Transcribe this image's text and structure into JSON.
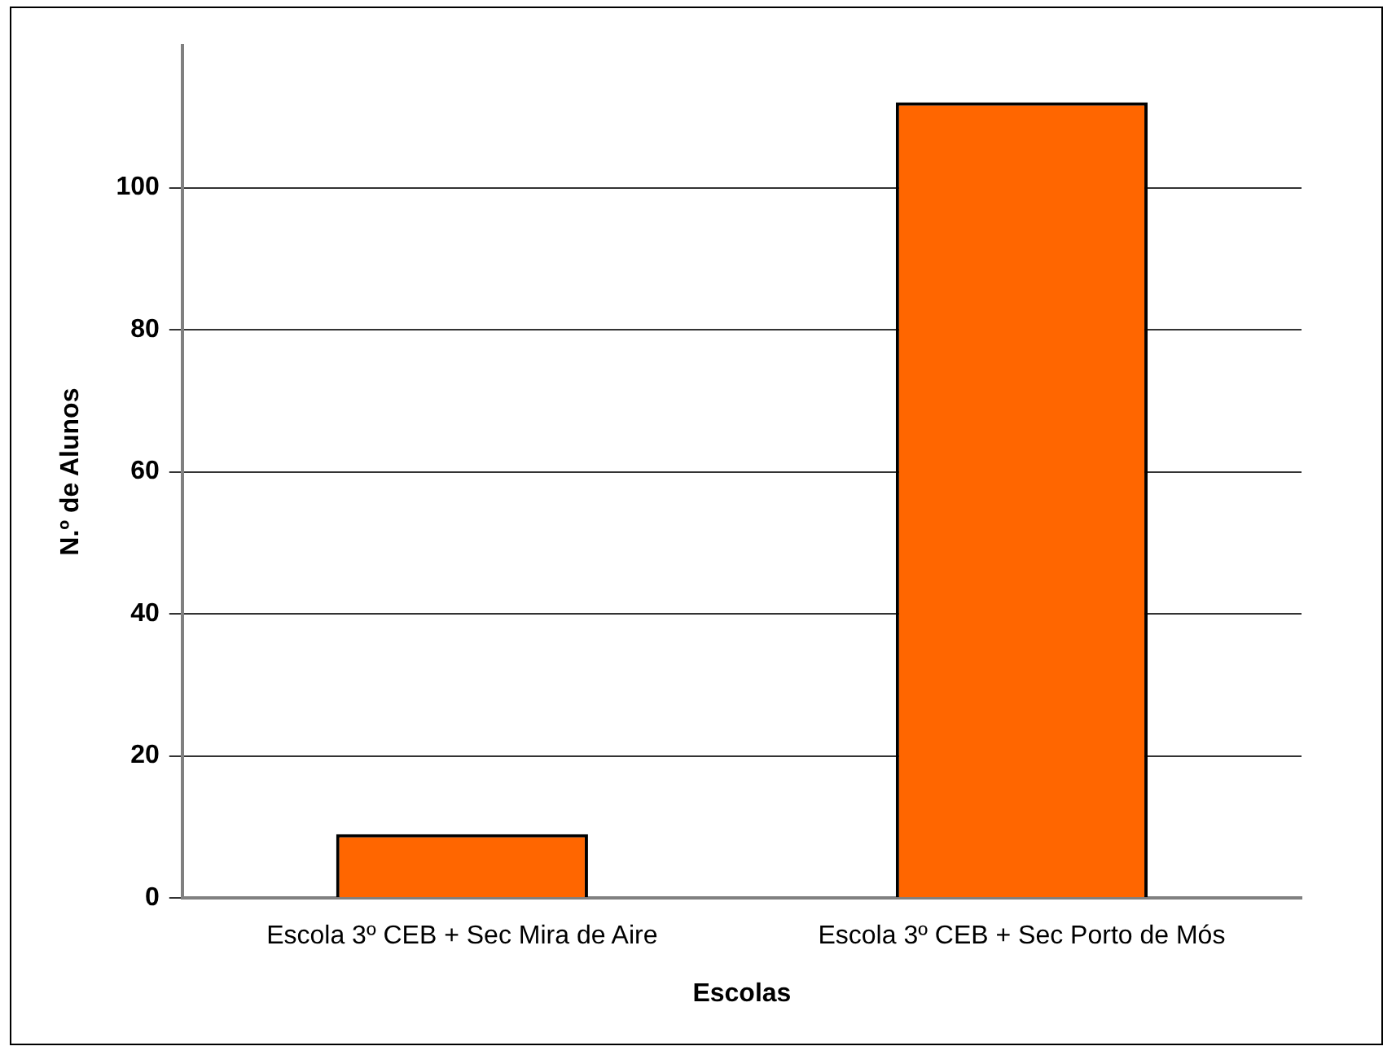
{
  "chart_data": {
    "type": "bar",
    "xlabel": "Escolas",
    "ylabel": "N.º de Alunos",
    "categories": [
      "Escola 3º CEB + Sec Mira de Aire",
      "Escola 3º CEB + Sec Porto de Mós"
    ],
    "values": [
      9,
      112
    ],
    "color": "#ff6600",
    "ylim": [
      0,
      120
    ],
    "yticks": [
      0,
      20,
      40,
      60,
      80,
      100
    ],
    "grid": "y",
    "legend": false
  }
}
